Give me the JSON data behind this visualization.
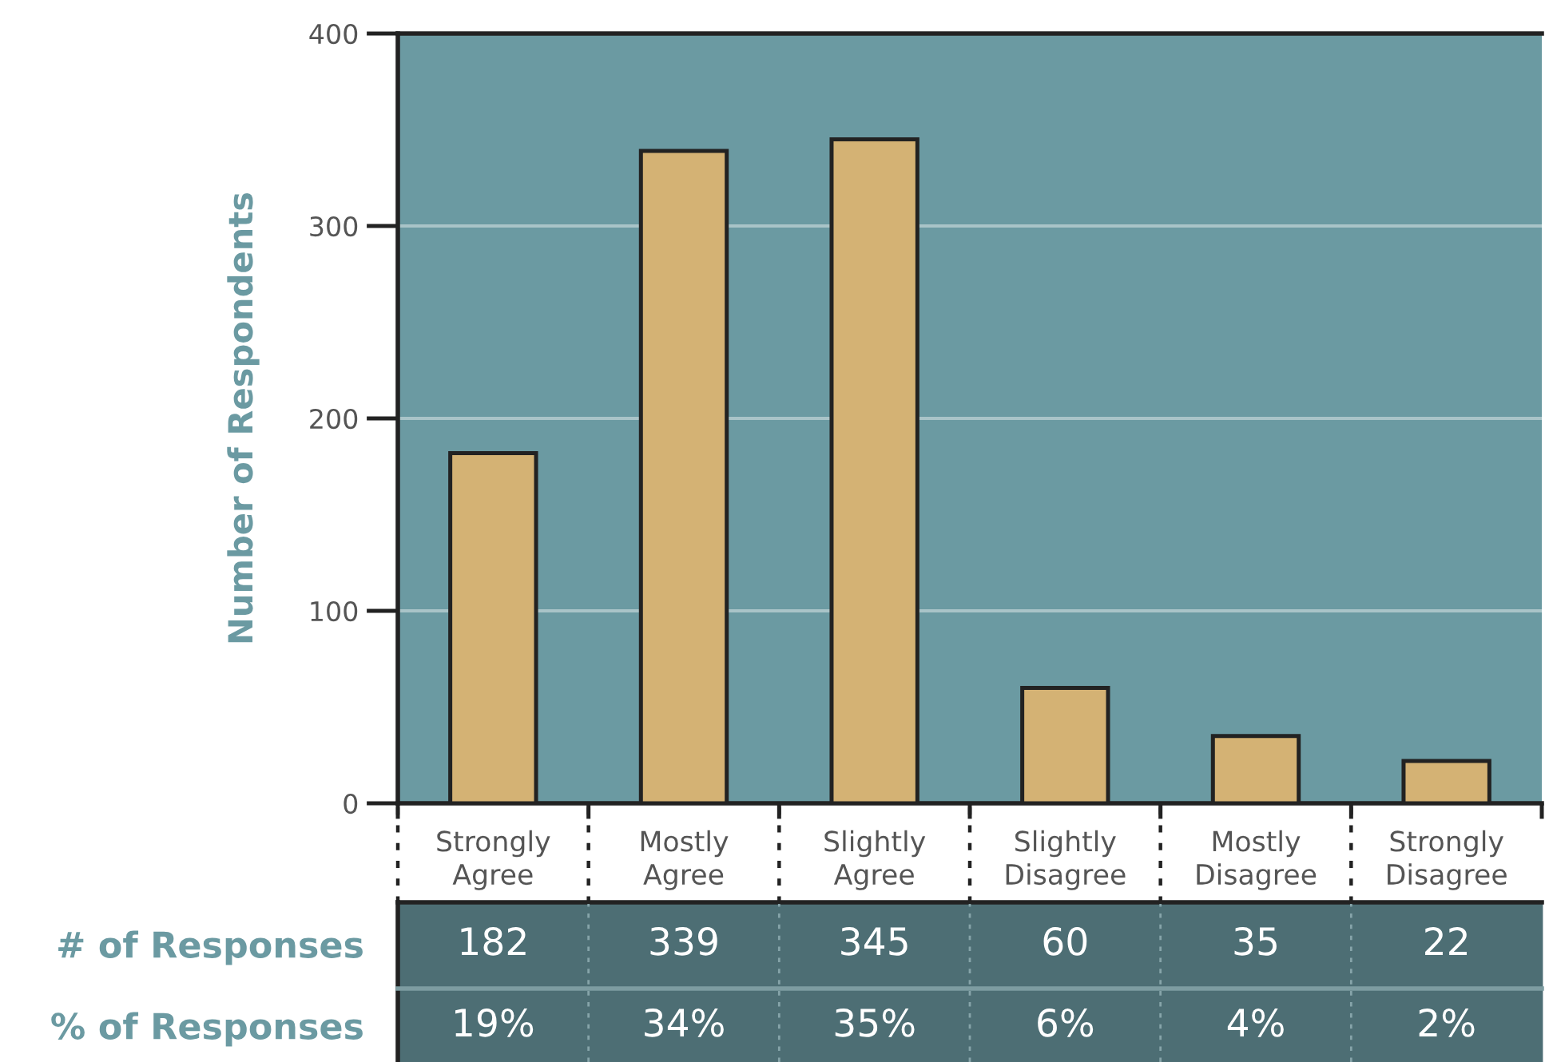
{
  "chart_data": {
    "type": "bar",
    "ylabel": "Number of Respondents",
    "categories": [
      "Strongly\nAgree",
      "Mostly\nAgree",
      "Slightly\nAgree",
      "Slightly\nDisagree",
      "Mostly\nDisagree",
      "Strongly\nDisagree"
    ],
    "series": [
      {
        "color": "#d4b274",
        "values": [
          182,
          339,
          345,
          60,
          35,
          22
        ]
      }
    ],
    "data_labels": true,
    "ylim": [
      0,
      400
    ],
    "yticks": [
      0,
      100,
      200,
      300,
      400
    ],
    "grid": "y",
    "annotations": [
      "# of Responses",
      "% of Responses",
      "19%",
      "34%",
      "35%",
      "6%",
      "4%",
      "2%"
    ]
  }
}
